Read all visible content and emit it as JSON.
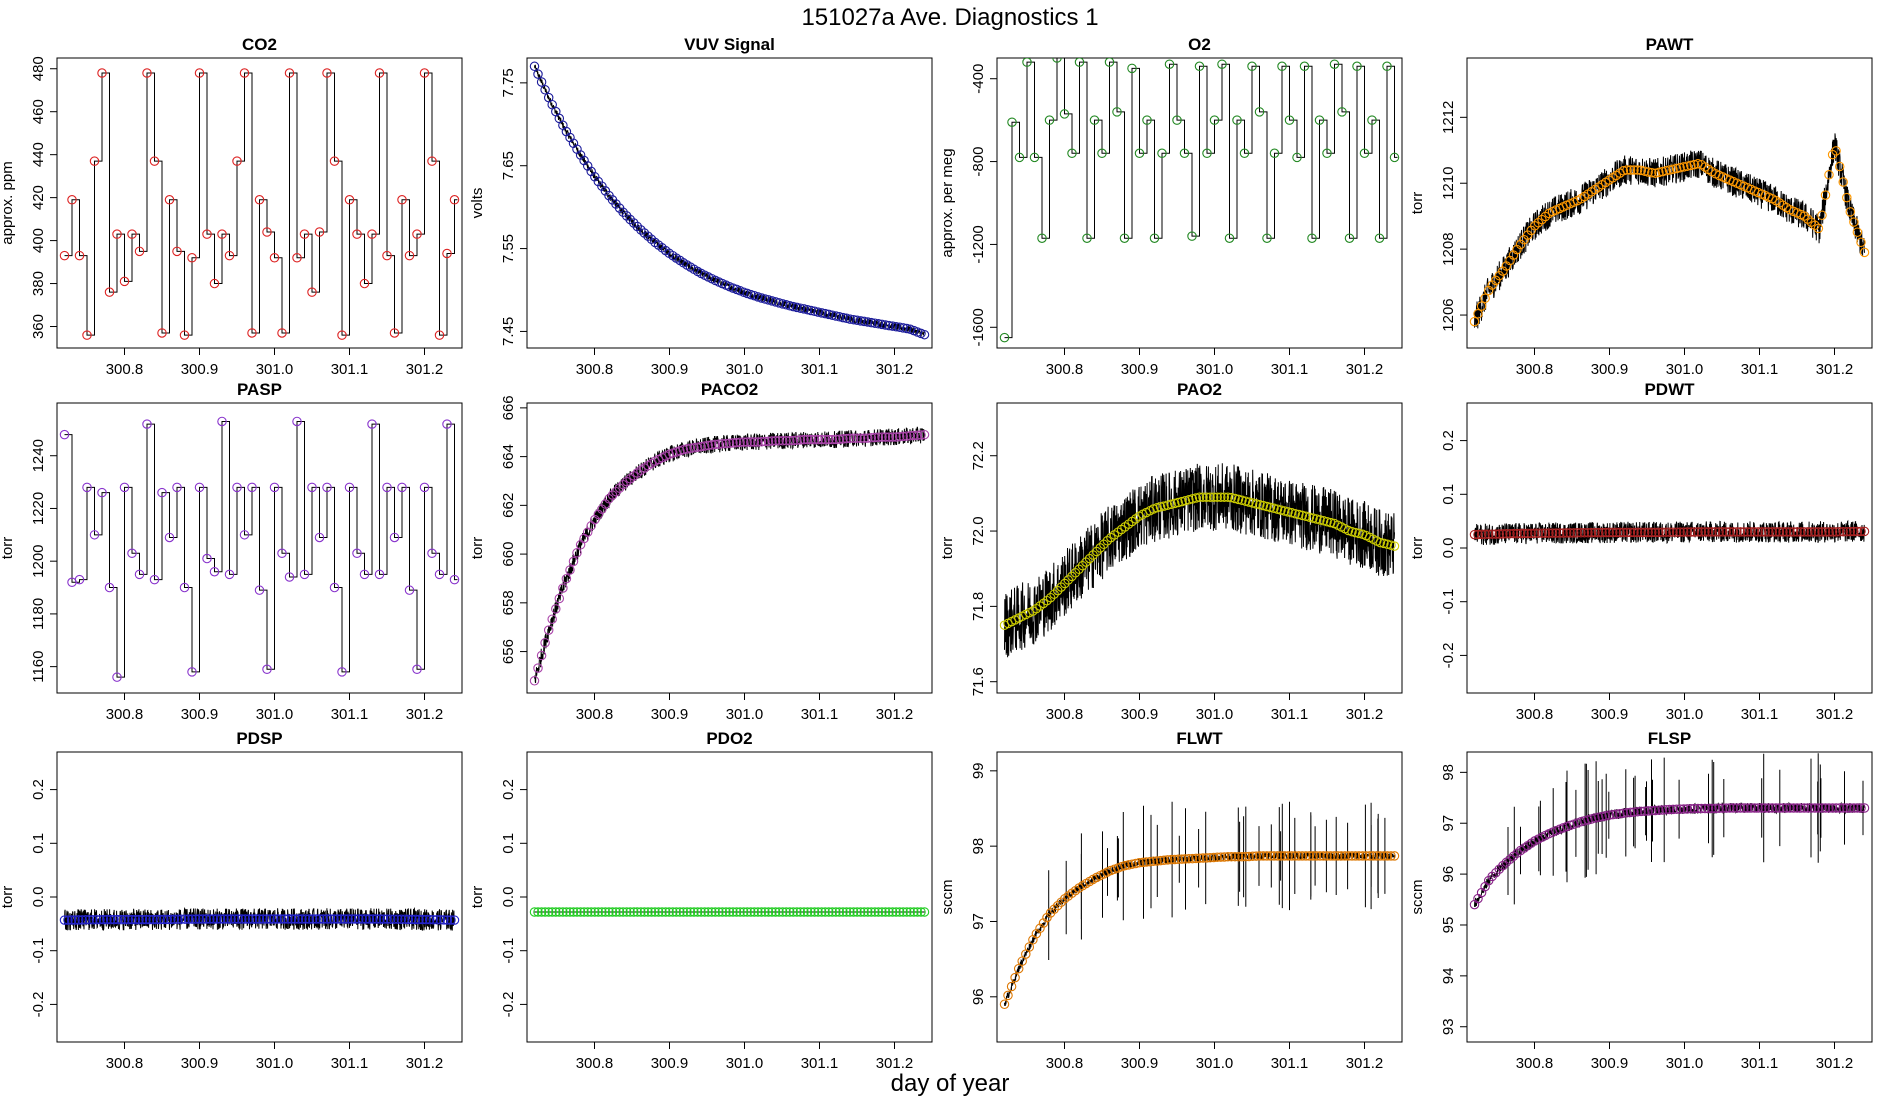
{
  "title": "151027a   Ave. Diagnostics 1",
  "xlabel": "day of year",
  "x_ticks": [
    "300.8",
    "300.9",
    "301.0",
    "301.1",
    "301.2"
  ],
  "x_tick_values": [
    300.8,
    300.9,
    301.0,
    301.1,
    301.2
  ],
  "xlim": [
    300.71,
    301.25
  ],
  "chart_data": [
    {
      "type": "line",
      "title": "CO2",
      "ylabel": "approx. ppm",
      "ylim": [
        350,
        485
      ],
      "y_ticks": [
        360,
        380,
        400,
        420,
        440,
        460,
        480
      ],
      "marker_color": "#dd2222",
      "series": [
        {
          "name": "CO2",
          "x": [
            300.72,
            300.73,
            300.74,
            300.75,
            300.76,
            300.77,
            300.78,
            300.79,
            300.8,
            300.81,
            300.82,
            300.83,
            300.84,
            300.85,
            300.86,
            300.87,
            300.88,
            300.89,
            300.9,
            300.91,
            300.92,
            300.93,
            300.94,
            300.95,
            300.96,
            300.97,
            300.98,
            300.99,
            301.0,
            301.01,
            301.02,
            301.03,
            301.04,
            301.05,
            301.06,
            301.07,
            301.08,
            301.09,
            301.1,
            301.11,
            301.12,
            301.13,
            301.14,
            301.15,
            301.16,
            301.17,
            301.18,
            301.19,
            301.2,
            301.21,
            301.22,
            301.23,
            301.24
          ],
          "values": [
            393,
            419,
            393,
            356,
            437,
            478,
            376,
            403,
            381,
            403,
            395,
            478,
            437,
            357,
            419,
            395,
            356,
            392,
            478,
            403,
            380,
            403,
            393,
            437,
            478,
            357,
            419,
            404,
            392,
            357,
            478,
            392,
            403,
            376,
            404,
            478,
            437,
            356,
            419,
            403,
            380,
            403,
            478,
            393,
            357,
            419,
            393,
            403,
            478,
            437,
            356,
            394,
            419
          ]
        }
      ]
    },
    {
      "type": "line",
      "title": "VUV Signal",
      "ylabel": "volts",
      "ylim": [
        7.43,
        7.78
      ],
      "y_ticks": [
        7.45,
        7.55,
        7.65,
        7.75
      ],
      "marker_color": "#1a1a9a",
      "series": [
        {
          "name": "VUV",
          "x": [
            300.72,
            300.74,
            300.76,
            300.78,
            300.8,
            300.82,
            300.84,
            300.86,
            300.88,
            300.9,
            300.92,
            300.94,
            300.96,
            300.98,
            301.0,
            301.02,
            301.04,
            301.06,
            301.08,
            301.1,
            301.12,
            301.14,
            301.16,
            301.18,
            301.2,
            301.22,
            301.24
          ],
          "values": [
            7.77,
            7.73,
            7.695,
            7.665,
            7.637,
            7.613,
            7.592,
            7.574,
            7.558,
            7.544,
            7.532,
            7.521,
            7.512,
            7.504,
            7.497,
            7.491,
            7.486,
            7.481,
            7.477,
            7.473,
            7.469,
            7.465,
            7.462,
            7.459,
            7.456,
            7.453,
            7.446
          ]
        }
      ]
    },
    {
      "type": "line",
      "title": "O2",
      "ylabel": "approx. per meg",
      "ylim": [
        -1700,
        -300
      ],
      "y_ticks": [
        -1600,
        -1200,
        -800,
        -400
      ],
      "marker_color": "#228822",
      "series": [
        {
          "name": "O2",
          "x": [
            300.72,
            300.73,
            300.74,
            300.75,
            300.76,
            300.77,
            300.78,
            300.79,
            300.8,
            300.81,
            300.82,
            300.83,
            300.84,
            300.85,
            300.86,
            300.87,
            300.88,
            300.89,
            300.9,
            300.91,
            300.92,
            300.93,
            300.94,
            300.95,
            300.96,
            300.97,
            300.98,
            300.99,
            301.0,
            301.01,
            301.02,
            301.03,
            301.04,
            301.05,
            301.06,
            301.07,
            301.08,
            301.09,
            301.1,
            301.11,
            301.12,
            301.13,
            301.14,
            301.15,
            301.16,
            301.17,
            301.18,
            301.19,
            301.2,
            301.21,
            301.22,
            301.23,
            301.24
          ],
          "values": [
            -1650,
            -610,
            -780,
            -320,
            -780,
            -1170,
            -600,
            -300,
            -570,
            -760,
            -320,
            -1170,
            -600,
            -760,
            -320,
            -560,
            -1170,
            -350,
            -760,
            -600,
            -1170,
            -760,
            -330,
            -600,
            -760,
            -1160,
            -340,
            -760,
            -600,
            -330,
            -1170,
            -600,
            -760,
            -340,
            -560,
            -1170,
            -760,
            -340,
            -600,
            -780,
            -340,
            -1170,
            -600,
            -760,
            -330,
            -560,
            -1170,
            -340,
            -760,
            -600,
            -1170,
            -340,
            -780
          ]
        }
      ]
    },
    {
      "type": "line",
      "title": "PAWT",
      "ylabel": "torr",
      "ylim": [
        1205.0,
        1213.8
      ],
      "y_ticks": [
        1206,
        1208,
        1210,
        1212
      ],
      "marker_color": "#ff9900",
      "series": [
        {
          "name": "PAWT",
          "x": [
            300.72,
            300.74,
            300.76,
            300.78,
            300.8,
            300.82,
            300.84,
            300.86,
            300.88,
            300.9,
            300.92,
            300.94,
            300.96,
            300.98,
            301.0,
            301.02,
            301.04,
            301.06,
            301.08,
            301.1,
            301.12,
            301.14,
            301.16,
            301.18,
            301.2,
            301.22,
            301.24
          ],
          "values": [
            1205.8,
            1206.8,
            1207.4,
            1208.1,
            1208.7,
            1209.1,
            1209.3,
            1209.5,
            1209.8,
            1210.1,
            1210.4,
            1210.4,
            1210.3,
            1210.4,
            1210.5,
            1210.6,
            1210.3,
            1210.1,
            1209.9,
            1209.7,
            1209.5,
            1209.2,
            1209.0,
            1208.6,
            1211.2,
            1209.2,
            1207.9
          ]
        }
      ]
    },
    {
      "type": "line",
      "title": "PASP",
      "ylabel": "torr",
      "ylim": [
        1150,
        1260
      ],
      "y_ticks": [
        1160,
        1180,
        1200,
        1220,
        1240
      ],
      "marker_color": "#8833cc",
      "series": [
        {
          "name": "PASP",
          "x": [
            300.72,
            300.73,
            300.74,
            300.75,
            300.76,
            300.77,
            300.78,
            300.79,
            300.8,
            300.81,
            300.82,
            300.83,
            300.84,
            300.85,
            300.86,
            300.87,
            300.88,
            300.89,
            300.9,
            300.91,
            300.92,
            300.93,
            300.94,
            300.95,
            300.96,
            300.97,
            300.98,
            300.99,
            301.0,
            301.01,
            301.02,
            301.03,
            301.04,
            301.05,
            301.06,
            301.07,
            301.08,
            301.09,
            301.1,
            301.11,
            301.12,
            301.13,
            301.14,
            301.15,
            301.16,
            301.17,
            301.18,
            301.19,
            301.2,
            301.21,
            301.22,
            301.23,
            301.24
          ],
          "values": [
            1248,
            1192,
            1193,
            1228,
            1210,
            1226,
            1190,
            1156,
            1228,
            1203,
            1195,
            1252,
            1193,
            1226,
            1209,
            1228,
            1190,
            1158,
            1228,
            1201,
            1196,
            1253,
            1195,
            1228,
            1210,
            1228,
            1189,
            1159,
            1228,
            1203,
            1194,
            1253,
            1195,
            1228,
            1209,
            1228,
            1190,
            1158,
            1228,
            1203,
            1195,
            1252,
            1195,
            1228,
            1209,
            1228,
            1189,
            1159,
            1228,
            1203,
            1195,
            1252,
            1193
          ]
        }
      ]
    },
    {
      "type": "line",
      "title": "PACO2",
      "ylabel": "torr",
      "ylim": [
        654.3,
        666.2
      ],
      "y_ticks": [
        656,
        658,
        660,
        662,
        664,
        666
      ],
      "marker_color": "#aa44aa",
      "series": [
        {
          "name": "PACO2",
          "x": [
            300.72,
            300.74,
            300.76,
            300.78,
            300.8,
            300.82,
            300.84,
            300.86,
            300.88,
            300.9,
            300.92,
            300.94,
            300.96,
            300.98,
            301.0,
            301.02,
            301.04,
            301.06,
            301.08,
            301.1,
            301.12,
            301.14,
            301.16,
            301.18,
            301.2,
            301.22,
            301.24
          ],
          "values": [
            654.8,
            657.0,
            658.8,
            660.3,
            661.4,
            662.3,
            662.9,
            663.4,
            663.8,
            664.1,
            664.3,
            664.4,
            664.5,
            664.55,
            664.6,
            664.6,
            664.65,
            664.65,
            664.7,
            664.7,
            664.7,
            664.75,
            664.75,
            664.8,
            664.8,
            664.85,
            664.9
          ]
        }
      ]
    },
    {
      "type": "line",
      "title": "PAO2",
      "ylabel": "torr",
      "ylim": [
        71.57,
        72.34
      ],
      "y_ticks": [
        71.6,
        71.8,
        72.0,
        72.2
      ],
      "marker_color": "#cccc00",
      "series": [
        {
          "name": "PAO2",
          "x": [
            300.72,
            300.74,
            300.76,
            300.78,
            300.8,
            300.82,
            300.84,
            300.86,
            300.88,
            300.9,
            300.92,
            300.94,
            300.96,
            300.98,
            301.0,
            301.02,
            301.04,
            301.06,
            301.08,
            301.1,
            301.12,
            301.14,
            301.16,
            301.18,
            301.2,
            301.22,
            301.24
          ],
          "values": [
            71.75,
            71.77,
            71.79,
            71.82,
            71.86,
            71.9,
            71.94,
            71.98,
            72.01,
            72.04,
            72.06,
            72.07,
            72.08,
            72.09,
            72.09,
            72.09,
            72.08,
            72.07,
            72.06,
            72.05,
            72.04,
            72.03,
            72.02,
            72.0,
            71.99,
            71.97,
            71.96
          ]
        }
      ]
    },
    {
      "type": "line",
      "title": "PDWT",
      "ylabel": "torr",
      "ylim": [
        -0.27,
        0.27
      ],
      "y_ticks": [
        -0.2,
        -0.1,
        0.0,
        0.1,
        0.2
      ],
      "marker_color": "#aa2222",
      "series": [
        {
          "name": "PDWT",
          "x": [
            300.72,
            300.78,
            300.84,
            300.9,
            300.96,
            301.02,
            301.08,
            301.14,
            301.2,
            301.24
          ],
          "values": [
            0.025,
            0.027,
            0.028,
            0.029,
            0.029,
            0.03,
            0.03,
            0.03,
            0.03,
            0.031
          ]
        }
      ]
    },
    {
      "type": "line",
      "title": "PDSP",
      "ylabel": "torr",
      "ylim": [
        -0.27,
        0.27
      ],
      "y_ticks": [
        -0.2,
        -0.1,
        0.0,
        0.1,
        0.2
      ],
      "marker_color": "#2222cc",
      "series": [
        {
          "name": "PDSP",
          "x": [
            300.72,
            300.78,
            300.84,
            300.9,
            300.96,
            301.02,
            301.08,
            301.14,
            301.2,
            301.24
          ],
          "values": [
            -0.043,
            -0.042,
            -0.042,
            -0.041,
            -0.041,
            -0.041,
            -0.041,
            -0.041,
            -0.042,
            -0.043
          ]
        }
      ]
    },
    {
      "type": "line",
      "title": "PDO2",
      "ylabel": "torr",
      "ylim": [
        -0.27,
        0.27
      ],
      "y_ticks": [
        -0.2,
        -0.1,
        0.0,
        0.1,
        0.2
      ],
      "marker_color": "#22cc22",
      "series": [
        {
          "name": "PDO2",
          "x": [
            300.72,
            300.78,
            300.84,
            300.9,
            300.96,
            301.02,
            301.08,
            301.14,
            301.2,
            301.24
          ],
          "values": [
            -0.028,
            -0.028,
            -0.028,
            -0.028,
            -0.028,
            -0.028,
            -0.028,
            -0.028,
            -0.028,
            -0.028
          ]
        }
      ]
    },
    {
      "type": "line",
      "title": "FLWT",
      "ylabel": "sccm",
      "ylim": [
        95.4,
        99.25
      ],
      "y_ticks": [
        96,
        97,
        98,
        99
      ],
      "marker_color": "#dd7700",
      "series": [
        {
          "name": "FLWT",
          "x": [
            300.72,
            300.74,
            300.76,
            300.78,
            300.8,
            300.82,
            300.84,
            300.86,
            300.88,
            300.9,
            300.92,
            300.94,
            300.96,
            300.98,
            301.0,
            301.02,
            301.04,
            301.06,
            301.08,
            301.1,
            301.12,
            301.14,
            301.16,
            301.18,
            301.2,
            301.22,
            301.24
          ],
          "values": [
            95.9,
            96.4,
            96.8,
            97.1,
            97.3,
            97.45,
            97.57,
            97.67,
            97.74,
            97.78,
            97.8,
            97.82,
            97.83,
            97.84,
            97.85,
            97.86,
            97.86,
            97.87,
            97.87,
            97.87,
            97.87,
            97.87,
            97.87,
            97.87,
            97.87,
            97.87,
            97.87
          ]
        }
      ]
    },
    {
      "type": "line",
      "title": "FLSP",
      "ylabel": "sccm",
      "ylim": [
        92.7,
        98.4
      ],
      "y_ticks": [
        93,
        94,
        95,
        96,
        97,
        98
      ],
      "marker_color": "#882288",
      "series": [
        {
          "name": "FLSP",
          "x": [
            300.72,
            300.74,
            300.76,
            300.78,
            300.8,
            300.82,
            300.84,
            300.86,
            300.88,
            300.9,
            300.92,
            300.94,
            300.96,
            300.98,
            301.0,
            301.02,
            301.04,
            301.06,
            301.08,
            301.1,
            301.12,
            301.14,
            301.16,
            301.18,
            301.2,
            301.22,
            301.24
          ],
          "values": [
            95.4,
            95.9,
            96.2,
            96.45,
            96.65,
            96.8,
            96.92,
            97.02,
            97.1,
            97.16,
            97.2,
            97.23,
            97.25,
            97.27,
            97.28,
            97.29,
            97.29,
            97.3,
            97.3,
            97.3,
            97.3,
            97.3,
            97.3,
            97.3,
            97.3,
            97.3,
            97.3
          ]
        }
      ]
    }
  ]
}
